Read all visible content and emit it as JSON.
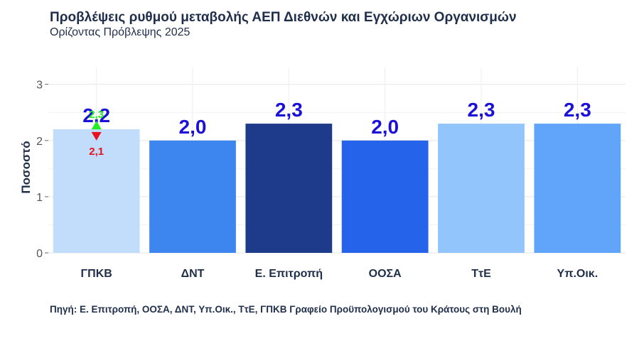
{
  "header": {
    "title": "Προβλέψεις ρυθμού μεταβολής ΑΕΠ Διεθνών και Εγχώριων Οργανισμών",
    "subtitle": "Ορίζοντας Πρόβλεψης 2025"
  },
  "footer": {
    "source": "Πηγή:  Ε. Επιτροπή, ΟΟΣΑ, ΔΝΤ, Υπ.Οικ., ΤτΕ, ΓΠΚΒ   Γραφείο Προϋπολογισμού του Κράτους στη Βουλή"
  },
  "chart_data": {
    "type": "bar",
    "title": "Προβλέψεις ρυθμού μεταβολής ΑΕΠ Διεθνών και Εγχώριων Οργανισμών",
    "subtitle": "Ορίζοντας Πρόβλεψης 2025",
    "xlabel": "",
    "ylabel": "Ποσοστό",
    "categories": [
      "ΓΠΚΒ",
      "ΔΝΤ",
      "Ε. Επιτροπή",
      "ΟΟΣΑ",
      "ΤτΕ",
      "Υπ.Οικ."
    ],
    "values": [
      2.2,
      2.0,
      2.3,
      2.0,
      2.3,
      2.3
    ],
    "value_labels": [
      "2,2",
      "2,0",
      "2,3",
      "2,0",
      "2,3",
      "2,3"
    ],
    "bar_colors": [
      "#c2dcfb",
      "#3d86ef",
      "#1e3a8a",
      "#2563eb",
      "#93c5fd",
      "#60a5fa"
    ],
    "value_label_color": "#1a10d8",
    "yticks": [
      0,
      1,
      2,
      3
    ],
    "ytick_labels": [
      "0",
      "1",
      "2",
      "3"
    ],
    "ylim": [
      0,
      3.3
    ],
    "grid": true,
    "legend": "none",
    "annotations": [
      {
        "category": "ΓΠΚΒ",
        "value": 2.3,
        "label": "2,3",
        "direction": "up",
        "color": "#22ee22"
      },
      {
        "category": "ΓΠΚΒ",
        "value": 2.1,
        "label": "2,1",
        "direction": "down",
        "color": "#e8101a"
      }
    ]
  }
}
